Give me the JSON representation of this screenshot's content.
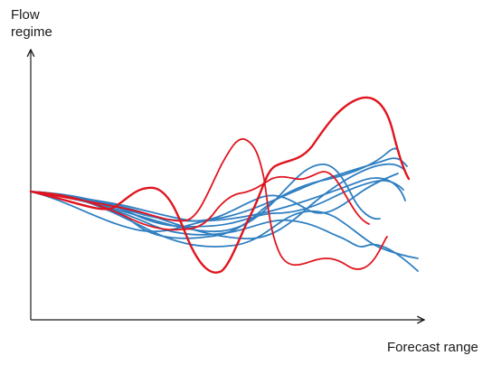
{
  "axes": {
    "y_label_line1": "Flow",
    "y_label_line2": "regime",
    "x_label": "Forecast range"
  },
  "colors": {
    "axis": "#1a1a1a",
    "ensemble_members": "#2f7fc1",
    "highlighted_members": "#e0141e"
  },
  "series_groups": [
    "ensemble_members",
    "highlighted_members"
  ]
}
